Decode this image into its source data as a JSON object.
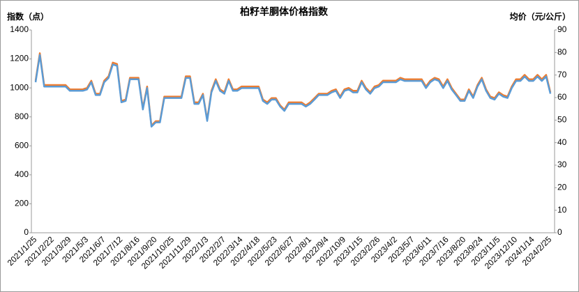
{
  "chart_data": {
    "type": "line",
    "title": "柏籽羊胴体价格指数",
    "ylabel": "指数（点）",
    "y2label": "均价（元/公斤）",
    "categories": [
      "2021/1/25",
      null,
      null,
      null,
      "2021/2/22",
      null,
      null,
      null,
      "2021/3/29",
      null,
      null,
      null,
      "2021/5/3",
      null,
      null,
      null,
      "2021/6/7",
      null,
      null,
      null,
      "2021/7/12",
      null,
      null,
      null,
      "2021/8/16",
      null,
      null,
      null,
      "2021/9/20",
      null,
      null,
      null,
      "2021/10/25",
      null,
      null,
      null,
      "2021/11/29",
      null,
      null,
      null,
      "2022/1/3",
      null,
      null,
      null,
      "2022/2/7",
      null,
      null,
      null,
      "2022/3/14",
      null,
      null,
      null,
      "2022/4/18",
      null,
      null,
      null,
      "2022/5/23",
      null,
      null,
      null,
      "2022/6/27",
      null,
      null,
      null,
      "2022/8/1",
      null,
      null,
      null,
      "2022/9/4",
      null,
      null,
      null,
      "2022/10/9",
      null,
      null,
      null,
      "2023/1/15",
      null,
      null,
      null,
      "2023/2/26",
      null,
      null,
      null,
      "2023/4/2",
      null,
      null,
      null,
      "2023/5/7",
      null,
      null,
      null,
      "2023/6/11",
      null,
      null,
      null,
      "2023/7/16",
      null,
      null,
      null,
      "2023/8/20",
      null,
      null,
      null,
      "2023/9/24",
      null,
      null,
      null,
      "2023/11/5",
      null,
      null,
      null,
      "2023/12/10",
      null,
      null,
      null,
      "2024/1/14",
      null,
      null,
      null,
      "2024/2/25"
    ],
    "series": [
      {
        "name": "指数",
        "color": "#ed7d31",
        "values": [
          1050,
          1240,
          1020,
          1020,
          1020,
          1020,
          1020,
          1020,
          990,
          990,
          990,
          990,
          1000,
          1050,
          960,
          960,
          1050,
          1080,
          1175,
          1165,
          910,
          920,
          1070,
          1070,
          1070,
          860,
          1010,
          740,
          770,
          770,
          940,
          940,
          940,
          940,
          940,
          1080,
          1080,
          900,
          900,
          960,
          780,
          980,
          1060,
          990,
          970,
          1060,
          990,
          990,
          1010,
          1010,
          1010,
          1010,
          1010,
          920,
          900,
          930,
          930,
          880,
          850,
          900,
          900,
          900,
          900,
          880,
          900,
          930,
          960,
          960,
          960,
          980,
          990,
          940,
          990,
          1000,
          980,
          980,
          1050,
          1000,
          970,
          1010,
          1020,
          1050,
          1050,
          1050,
          1050,
          1070,
          1060,
          1060,
          1060,
          1060,
          1060,
          1010,
          1050,
          1070,
          1060,
          1010,
          1060,
          1000,
          960,
          920,
          920,
          990,
          940,
          1020,
          1070,
          990,
          940,
          930,
          970,
          950,
          940,
          1010,
          1060,
          1060,
          1090,
          1060,
          1060,
          1090,
          1060,
          1090,
          970
        ]
      },
      {
        "name": "均价",
        "color": "#5b9bd5",
        "axis": "y2",
        "values": [
          66.8,
          78.9,
          64.9,
          64.9,
          64.9,
          64.9,
          64.9,
          64.9,
          63.0,
          63.0,
          63.0,
          63.0,
          63.6,
          66.8,
          61.1,
          61.1,
          66.8,
          68.7,
          74.7,
          74.1,
          57.9,
          58.5,
          68.1,
          68.1,
          68.1,
          54.7,
          64.2,
          47.1,
          49.0,
          49.0,
          59.8,
          59.8,
          59.8,
          59.8,
          59.8,
          68.7,
          68.7,
          57.2,
          57.2,
          61.1,
          49.6,
          62.3,
          67.4,
          63.0,
          61.7,
          67.4,
          63.0,
          63.0,
          64.2,
          64.2,
          64.2,
          64.2,
          64.2,
          58.5,
          57.2,
          59.1,
          59.1,
          56.0,
          54.1,
          57.2,
          57.2,
          57.2,
          57.2,
          56.0,
          57.2,
          59.1,
          61.1,
          61.1,
          61.1,
          62.3,
          63.0,
          59.8,
          63.0,
          63.6,
          62.3,
          62.3,
          66.8,
          63.6,
          61.7,
          64.2,
          64.9,
          66.8,
          66.8,
          66.8,
          66.8,
          68.1,
          67.4,
          67.4,
          67.4,
          67.4,
          67.4,
          64.2,
          66.8,
          68.1,
          67.4,
          64.2,
          67.4,
          63.6,
          61.1,
          58.5,
          58.5,
          63.0,
          59.8,
          64.9,
          68.1,
          63.0,
          59.8,
          59.1,
          61.7,
          60.4,
          59.8,
          64.2,
          67.4,
          67.4,
          69.3,
          67.4,
          67.4,
          69.3,
          67.4,
          69.3,
          61.7
        ]
      }
    ],
    "ylim": [
      0,
      1400
    ],
    "yticks": [
      0,
      200,
      400,
      600,
      800,
      1000,
      1200,
      1400
    ],
    "y2lim": [
      0,
      90
    ],
    "y2ticks": [
      0,
      10,
      20,
      30,
      40,
      50,
      60,
      70,
      80,
      90
    ],
    "grid": false
  }
}
